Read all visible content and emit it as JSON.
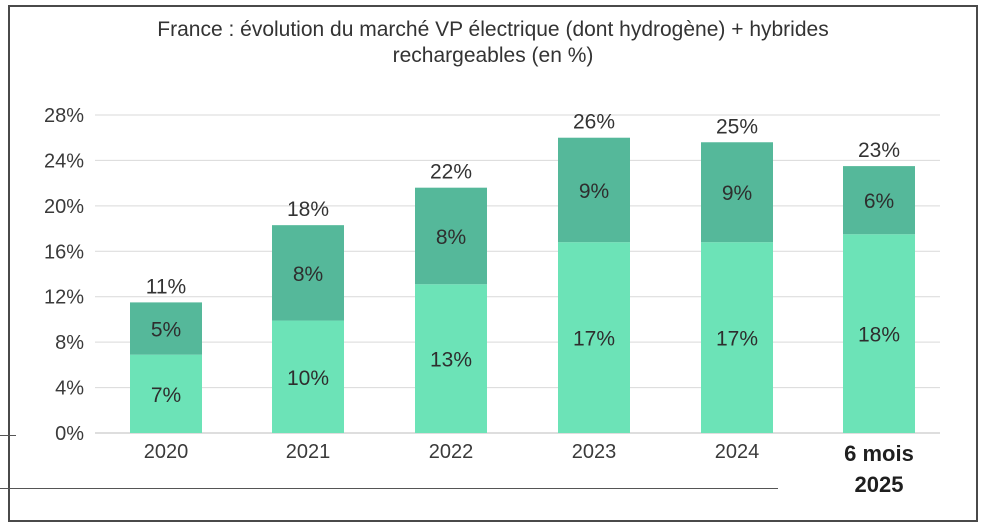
{
  "chart_data": {
    "type": "bar",
    "stacked": true,
    "title_lines": [
      "France : évolution du marché VP électrique (dont hydrogène) + hybrides",
      "rechargeables (en %)"
    ],
    "categories": [
      "2020",
      "2021",
      "2022",
      "2023",
      "2024",
      "6 mois 2025"
    ],
    "category_lines": [
      [
        "2020"
      ],
      [
        "2021"
      ],
      [
        "2022"
      ],
      [
        "2023"
      ],
      [
        "2024"
      ],
      [
        "6 mois",
        "2025"
      ]
    ],
    "series": [
      {
        "values": [
          6.9,
          9.9,
          13.1,
          16.8,
          16.8,
          17.5
        ],
        "labels": [
          "7%",
          "10%",
          "13%",
          "17%",
          "17%",
          "18%"
        ],
        "color": "#6ce3b7"
      },
      {
        "values": [
          4.6,
          8.4,
          8.5,
          9.2,
          8.8,
          6.0
        ],
        "labels": [
          "5%",
          "8%",
          "8%",
          "9%",
          "9%",
          "6%"
        ],
        "color": "#55b89a"
      }
    ],
    "totals": [
      "11%",
      "18%",
      "22%",
      "26%",
      "25%",
      "23%"
    ],
    "yticks": [
      "0%",
      "4%",
      "8%",
      "12%",
      "16%",
      "20%",
      "24%",
      "28%"
    ],
    "ylim": [
      0,
      28
    ],
    "grid": true
  }
}
